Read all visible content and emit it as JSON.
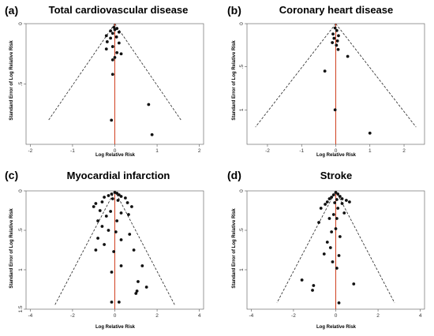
{
  "chart_data": [
    {
      "type": "scatter",
      "letter": "(a)",
      "title": "Total cardiovascular disease",
      "xlabel": "Log Relative Risk",
      "ylabel": "Standard Error of Log Relative Risk",
      "xlim": [
        -2.1,
        2.1
      ],
      "ylim": [
        0,
        1.0
      ],
      "y_reversed": true,
      "xticks": [
        -2,
        -1,
        0,
        1,
        2
      ],
      "xtick_labels": [
        "-2",
        "-1",
        "0",
        "1",
        "2"
      ],
      "yticks": [
        0,
        0.5
      ],
      "ytick_labels": [
        "0",
        ".5"
      ],
      "funnel": {
        "center": 0,
        "se_max": 0.8
      },
      "reference_line": 0,
      "points": [
        {
          "x": -0.02,
          "y": 0.03
        },
        {
          "x": 0.05,
          "y": 0.04
        },
        {
          "x": -0.1,
          "y": 0.06
        },
        {
          "x": 0.0,
          "y": 0.05
        },
        {
          "x": 0.1,
          "y": 0.07
        },
        {
          "x": -0.05,
          "y": 0.08
        },
        {
          "x": -0.2,
          "y": 0.1
        },
        {
          "x": 0.04,
          "y": 0.11
        },
        {
          "x": -0.1,
          "y": 0.12
        },
        {
          "x": -0.18,
          "y": 0.15
        },
        {
          "x": 0.1,
          "y": 0.16
        },
        {
          "x": -0.05,
          "y": 0.19
        },
        {
          "x": -0.2,
          "y": 0.21
        },
        {
          "x": 0.05,
          "y": 0.24
        },
        {
          "x": 0.15,
          "y": 0.25
        },
        {
          "x": 0.0,
          "y": 0.28
        },
        {
          "x": -0.05,
          "y": 0.3
        },
        {
          "x": -0.05,
          "y": 0.42
        },
        {
          "x": 0.8,
          "y": 0.67
        },
        {
          "x": -0.08,
          "y": 0.8
        },
        {
          "x": 0.88,
          "y": 0.92
        }
      ]
    },
    {
      "type": "scatter",
      "letter": "(b)",
      "title": "Coronary heart disease",
      "xlabel": "Log Relative Risk",
      "ylabel": "Standard Error of Log Relative Risk",
      "xlim": [
        -2.6,
        2.6
      ],
      "ylim": [
        0,
        1.4
      ],
      "y_reversed": true,
      "xticks": [
        -2,
        -1,
        0,
        1,
        2
      ],
      "xtick_labels": [
        "-2",
        "-1",
        "0",
        "1",
        "2"
      ],
      "yticks": [
        0,
        0.5,
        1
      ],
      "ytick_labels": [
        "0",
        ".5",
        "1"
      ],
      "funnel": {
        "center": 0,
        "se_max": 1.2
      },
      "reference_line": 0,
      "points": [
        {
          "x": -0.02,
          "y": 0.05
        },
        {
          "x": 0.03,
          "y": 0.08
        },
        {
          "x": -0.08,
          "y": 0.12
        },
        {
          "x": 0.08,
          "y": 0.14
        },
        {
          "x": -0.05,
          "y": 0.17
        },
        {
          "x": 0.05,
          "y": 0.2
        },
        {
          "x": -0.1,
          "y": 0.22
        },
        {
          "x": 0.02,
          "y": 0.25
        },
        {
          "x": 0.07,
          "y": 0.3
        },
        {
          "x": 0.35,
          "y": 0.38
        },
        {
          "x": -0.32,
          "y": 0.55
        },
        {
          "x": -0.02,
          "y": 1.0
        },
        {
          "x": 1.0,
          "y": 1.27
        }
      ]
    },
    {
      "type": "scatter",
      "letter": "(c)",
      "title": "Myocardial infarction",
      "xlabel": "Log Relative Risk",
      "ylabel": "Standard Error of Log Relative Risk",
      "xlim": [
        -4.2,
        4.2
      ],
      "ylim": [
        0,
        1.5
      ],
      "y_reversed": true,
      "xticks": [
        -4,
        -2,
        0,
        2,
        4
      ],
      "xtick_labels": [
        "-4",
        "-2",
        "0",
        "2",
        "4"
      ],
      "yticks": [
        0,
        0.5,
        1,
        1.5
      ],
      "ytick_labels": [
        "0",
        ".5",
        "1",
        "1.5"
      ],
      "funnel": {
        "center": 0,
        "se_max": 1.45
      },
      "reference_line": 0,
      "points": [
        {
          "x": 0.0,
          "y": 0.02
        },
        {
          "x": 0.1,
          "y": 0.03
        },
        {
          "x": -0.15,
          "y": 0.04
        },
        {
          "x": 0.2,
          "y": 0.05
        },
        {
          "x": -0.3,
          "y": 0.06
        },
        {
          "x": 0.3,
          "y": 0.07
        },
        {
          "x": -0.5,
          "y": 0.08
        },
        {
          "x": 0.5,
          "y": 0.09
        },
        {
          "x": -0.1,
          "y": 0.1
        },
        {
          "x": 0.15,
          "y": 0.12
        },
        {
          "x": -0.6,
          "y": 0.14
        },
        {
          "x": 0.6,
          "y": 0.15
        },
        {
          "x": -0.9,
          "y": 0.16
        },
        {
          "x": -1.0,
          "y": 0.2
        },
        {
          "x": 0.8,
          "y": 0.2
        },
        {
          "x": -0.7,
          "y": 0.25
        },
        {
          "x": -0.2,
          "y": 0.26
        },
        {
          "x": 0.3,
          "y": 0.28
        },
        {
          "x": 0.65,
          "y": 0.3
        },
        {
          "x": -0.4,
          "y": 0.32
        },
        {
          "x": -0.8,
          "y": 0.38
        },
        {
          "x": 0.1,
          "y": 0.38
        },
        {
          "x": -0.6,
          "y": 0.45
        },
        {
          "x": -0.3,
          "y": 0.5
        },
        {
          "x": 0.05,
          "y": 0.52
        },
        {
          "x": 0.7,
          "y": 0.55
        },
        {
          "x": -0.8,
          "y": 0.6
        },
        {
          "x": 0.3,
          "y": 0.62
        },
        {
          "x": -0.5,
          "y": 0.68
        },
        {
          "x": -0.9,
          "y": 0.75
        },
        {
          "x": 0.9,
          "y": 0.75
        },
        {
          "x": -0.05,
          "y": 0.77
        },
        {
          "x": 0.3,
          "y": 0.95
        },
        {
          "x": 1.3,
          "y": 0.95
        },
        {
          "x": -0.15,
          "y": 1.03
        },
        {
          "x": 1.1,
          "y": 1.15
        },
        {
          "x": 1.5,
          "y": 1.22
        },
        {
          "x": 1.05,
          "y": 1.27
        },
        {
          "x": 1.0,
          "y": 1.3
        },
        {
          "x": -0.15,
          "y": 1.41
        },
        {
          "x": 0.2,
          "y": 1.41
        }
      ]
    },
    {
      "type": "scatter",
      "letter": "(d)",
      "title": "Stroke",
      "xlabel": "Log Relative Risk",
      "ylabel": "Standard Error of Log Relative Risk",
      "xlim": [
        -4.2,
        4.2
      ],
      "ylim": [
        0,
        1.5
      ],
      "y_reversed": true,
      "xticks": [
        -4,
        -2,
        0,
        2,
        4
      ],
      "xtick_labels": [
        "-4",
        "-2",
        "0",
        "2",
        "4"
      ],
      "yticks": [
        0,
        0.5,
        1
      ],
      "ytick_labels": [
        "0",
        ".5",
        "1"
      ],
      "funnel": {
        "center": 0,
        "se_max": 1.42
      },
      "reference_line": 0,
      "points": [
        {
          "x": 0.0,
          "y": 0.02
        },
        {
          "x": 0.1,
          "y": 0.04
        },
        {
          "x": -0.1,
          "y": 0.05
        },
        {
          "x": 0.2,
          "y": 0.07
        },
        {
          "x": -0.2,
          "y": 0.08
        },
        {
          "x": 0.3,
          "y": 0.1
        },
        {
          "x": -0.3,
          "y": 0.1
        },
        {
          "x": 0.05,
          "y": 0.11
        },
        {
          "x": 0.5,
          "y": 0.12
        },
        {
          "x": 0.65,
          "y": 0.14
        },
        {
          "x": -0.4,
          "y": 0.14
        },
        {
          "x": -0.05,
          "y": 0.15
        },
        {
          "x": 0.3,
          "y": 0.16
        },
        {
          "x": -0.5,
          "y": 0.17
        },
        {
          "x": -0.7,
          "y": 0.22
        },
        {
          "x": 0.1,
          "y": 0.22
        },
        {
          "x": 0.4,
          "y": 0.28
        },
        {
          "x": -0.1,
          "y": 0.3
        },
        {
          "x": -0.3,
          "y": 0.35
        },
        {
          "x": 0.05,
          "y": 0.35
        },
        {
          "x": -0.8,
          "y": 0.4
        },
        {
          "x": 0.0,
          "y": 0.48
        },
        {
          "x": -0.2,
          "y": 0.52
        },
        {
          "x": 0.2,
          "y": 0.58
        },
        {
          "x": -0.4,
          "y": 0.65
        },
        {
          "x": -0.25,
          "y": 0.72
        },
        {
          "x": -0.55,
          "y": 0.8
        },
        {
          "x": 0.15,
          "y": 0.82
        },
        {
          "x": -0.15,
          "y": 0.9
        },
        {
          "x": 0.05,
          "y": 0.98
        },
        {
          "x": -1.6,
          "y": 1.13
        },
        {
          "x": 0.85,
          "y": 1.18
        },
        {
          "x": -1.05,
          "y": 1.2
        },
        {
          "x": -1.1,
          "y": 1.26
        },
        {
          "x": 0.15,
          "y": 1.42
        }
      ]
    }
  ]
}
